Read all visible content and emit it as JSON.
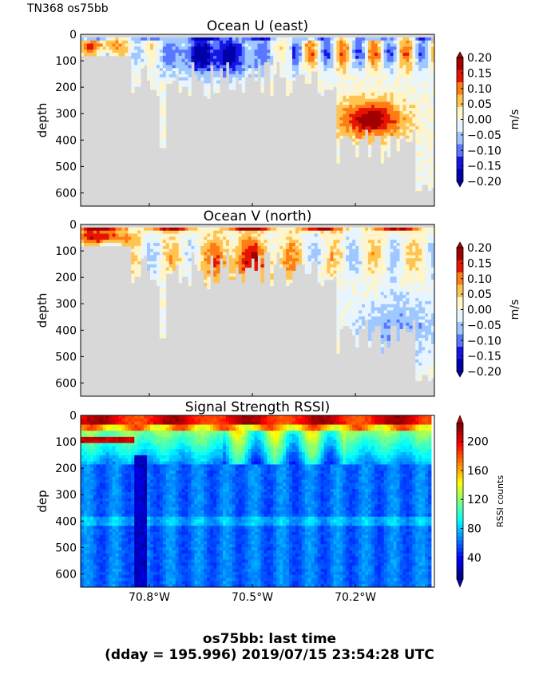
{
  "figure": {
    "corner_label": "TN368 os75bb",
    "bottom_title_line1": "os75bb: last time",
    "bottom_title_line2": "(dday = 195.996) 2019/07/15 23:54:28 UTC",
    "colors": {
      "no_data": "#d8d8d8",
      "velocity_scale": [
        "#0000a8",
        "#1414e6",
        "#5a78ff",
        "#9ec8ff",
        "#e6f5ff",
        "#fff5c8",
        "#ffc350",
        "#ff7d14",
        "#e61400",
        "#a00000"
      ],
      "rssi_colormap": "jet"
    }
  },
  "chart_data": [
    {
      "type": "heatmap",
      "title": "Ocean U (east)",
      "xlabel": "",
      "ylabel": "depth",
      "x_ticks": [
        "70.8°W",
        "70.5°W",
        "70.2°W"
      ],
      "x_tick_values": [
        -70.8,
        -70.5,
        -70.2
      ],
      "xlim": [
        -71.0,
        -69.97
      ],
      "y_ticks": [
        "0",
        "100",
        "200",
        "300",
        "400",
        "500",
        "600"
      ],
      "y_tick_values": [
        0,
        100,
        200,
        300,
        400,
        500,
        600
      ],
      "ylim": [
        650,
        0
      ],
      "colorbar": {
        "label": "m/s",
        "tick_labels": [
          "0.20",
          "0.15",
          "0.10",
          "0.05",
          "0.00",
          "−0.05",
          "−0.10",
          "−0.15",
          "−0.20"
        ],
        "range": [
          -0.2,
          0.2
        ],
        "extend": "both"
      },
      "features": [
        {
          "region": "near-surface west of 70.8°W",
          "depth_range": [
            20,
            80
          ],
          "value_range": [
            0.05,
            0.15
          ]
        },
        {
          "region": "70.7°W–70.5°W",
          "depth_range": [
            30,
            200
          ],
          "value_range": [
            -0.2,
            -0.1
          ]
        },
        {
          "region": "70.25°W–70.1°W",
          "depth_range": [
            250,
            400
          ],
          "value_range": [
            0.15,
            0.2
          ]
        }
      ]
    },
    {
      "type": "heatmap",
      "title": "Ocean V (north)",
      "xlabel": "",
      "ylabel": "depth",
      "x_ticks": [
        "70.8°W",
        "70.5°W",
        "70.2°W"
      ],
      "x_tick_values": [
        -70.8,
        -70.5,
        -70.2
      ],
      "xlim": [
        -71.0,
        -69.97
      ],
      "y_ticks": [
        "0",
        "100",
        "200",
        "300",
        "400",
        "500",
        "600"
      ],
      "y_tick_values": [
        0,
        100,
        200,
        300,
        400,
        500,
        600
      ],
      "ylim": [
        650,
        0
      ],
      "colorbar": {
        "label": "m/s",
        "tick_labels": [
          "0.20",
          "0.15",
          "0.10",
          "0.05",
          "0.00",
          "−0.05",
          "−0.10",
          "−0.15",
          "−0.20"
        ],
        "range": [
          -0.2,
          0.2
        ],
        "extend": "both"
      },
      "features": [
        {
          "region": "near-surface west of 70.8°W",
          "depth_range": [
            20,
            70
          ],
          "value_range": [
            0.1,
            0.2
          ]
        },
        {
          "region": "70.6°W–70.4°W",
          "depth_range": [
            50,
            250
          ],
          "value_range": [
            0.05,
            0.15
          ]
        },
        {
          "region": "east of 70.2°W",
          "depth_range": [
            300,
            550
          ],
          "value_range": [
            -0.1,
            -0.05
          ]
        }
      ]
    },
    {
      "type": "heatmap",
      "title": "Signal Strength RSSI)",
      "xlabel": "",
      "ylabel": "dep",
      "x_ticks": [
        "70.8°W",
        "70.5°W",
        "70.2°W"
      ],
      "x_tick_values": [
        -70.8,
        -70.5,
        -70.2
      ],
      "xlim": [
        -71.0,
        -69.97
      ],
      "y_ticks": [
        "0",
        "100",
        "200",
        "300",
        "400",
        "500",
        "600"
      ],
      "y_tick_values": [
        0,
        100,
        200,
        300,
        400,
        500,
        600
      ],
      "ylim": [
        650,
        0
      ],
      "colorbar": {
        "label": "RSSI counts",
        "tick_labels": [
          "200",
          "160",
          "120",
          "80",
          "40"
        ],
        "tick_values": [
          200,
          160,
          120,
          80,
          40
        ],
        "range": [
          10,
          225
        ],
        "extend": "both"
      },
      "features": [
        {
          "region": "surface",
          "depth_range": [
            0,
            30
          ],
          "value_range": [
            190,
            220
          ]
        },
        {
          "region": "upper water column",
          "depth_range": [
            30,
            180
          ],
          "value_range": [
            90,
            150
          ]
        },
        {
          "region": "deep",
          "depth_range": [
            200,
            650
          ],
          "value_range": [
            40,
            75
          ]
        },
        {
          "region": "near 70.78°W",
          "depth_range": [
            200,
            650
          ],
          "value_range": [
            15,
            35
          ]
        }
      ]
    }
  ]
}
